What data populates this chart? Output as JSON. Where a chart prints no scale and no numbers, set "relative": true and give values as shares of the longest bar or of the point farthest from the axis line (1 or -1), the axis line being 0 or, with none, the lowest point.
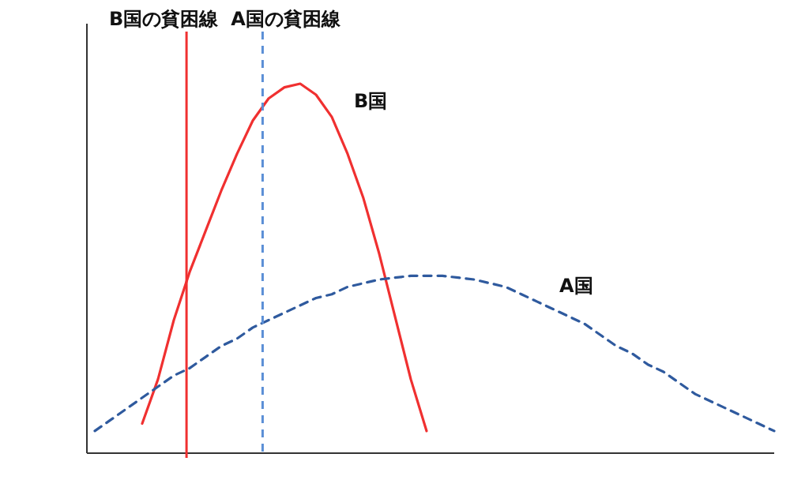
{
  "chart_data": {
    "type": "line",
    "relative": true,
    "tick_labels": false,
    "categories": [
      null,
      null,
      null,
      null,
      null,
      null,
      null,
      null,
      null,
      null,
      null,
      null,
      null,
      null,
      null,
      null,
      null,
      null,
      null,
      null,
      null,
      null,
      null,
      null,
      null,
      null,
      null,
      null,
      null,
      null,
      null,
      null,
      null,
      null,
      null,
      null,
      null,
      null,
      null,
      null,
      null,
      null,
      null,
      null
    ],
    "series": [
      {
        "name": "B国",
        "color": "#f03030",
        "line_style": "solid",
        "values": [
          null,
          null,
          null,
          0.08,
          0.2,
          0.36,
          0.49,
          0.6,
          0.71,
          0.81,
          0.9,
          0.96,
          0.99,
          1.0,
          0.97,
          0.91,
          0.81,
          0.69,
          0.54,
          0.37,
          0.2,
          0.06,
          null,
          null,
          null,
          null,
          null,
          null,
          null,
          null,
          null,
          null,
          null,
          null,
          null,
          null,
          null,
          null,
          null,
          null,
          null,
          null,
          null,
          null
        ]
      },
      {
        "name": "A国",
        "color": "#2f5a9e",
        "line_style": "dashed",
        "values": [
          0.06,
          0.09,
          0.12,
          0.15,
          0.18,
          0.21,
          0.23,
          0.26,
          0.29,
          0.31,
          0.34,
          0.36,
          0.38,
          0.4,
          0.42,
          0.43,
          0.45,
          0.46,
          0.47,
          0.475,
          0.48,
          0.48,
          0.48,
          0.475,
          0.47,
          0.46,
          0.45,
          0.43,
          0.41,
          0.39,
          0.37,
          0.35,
          0.32,
          0.29,
          0.27,
          0.24,
          0.22,
          0.19,
          0.16,
          0.14,
          0.12,
          0.1,
          0.08,
          0.06
        ]
      }
    ],
    "ref_lines": [
      {
        "axis": "x",
        "label": "B国の貧困線",
        "color": "#f03030",
        "line_style": "solid"
      },
      {
        "axis": "x",
        "label": "A国の貧困線",
        "color": "#5b8fd6",
        "line_style": "dashed"
      }
    ]
  }
}
